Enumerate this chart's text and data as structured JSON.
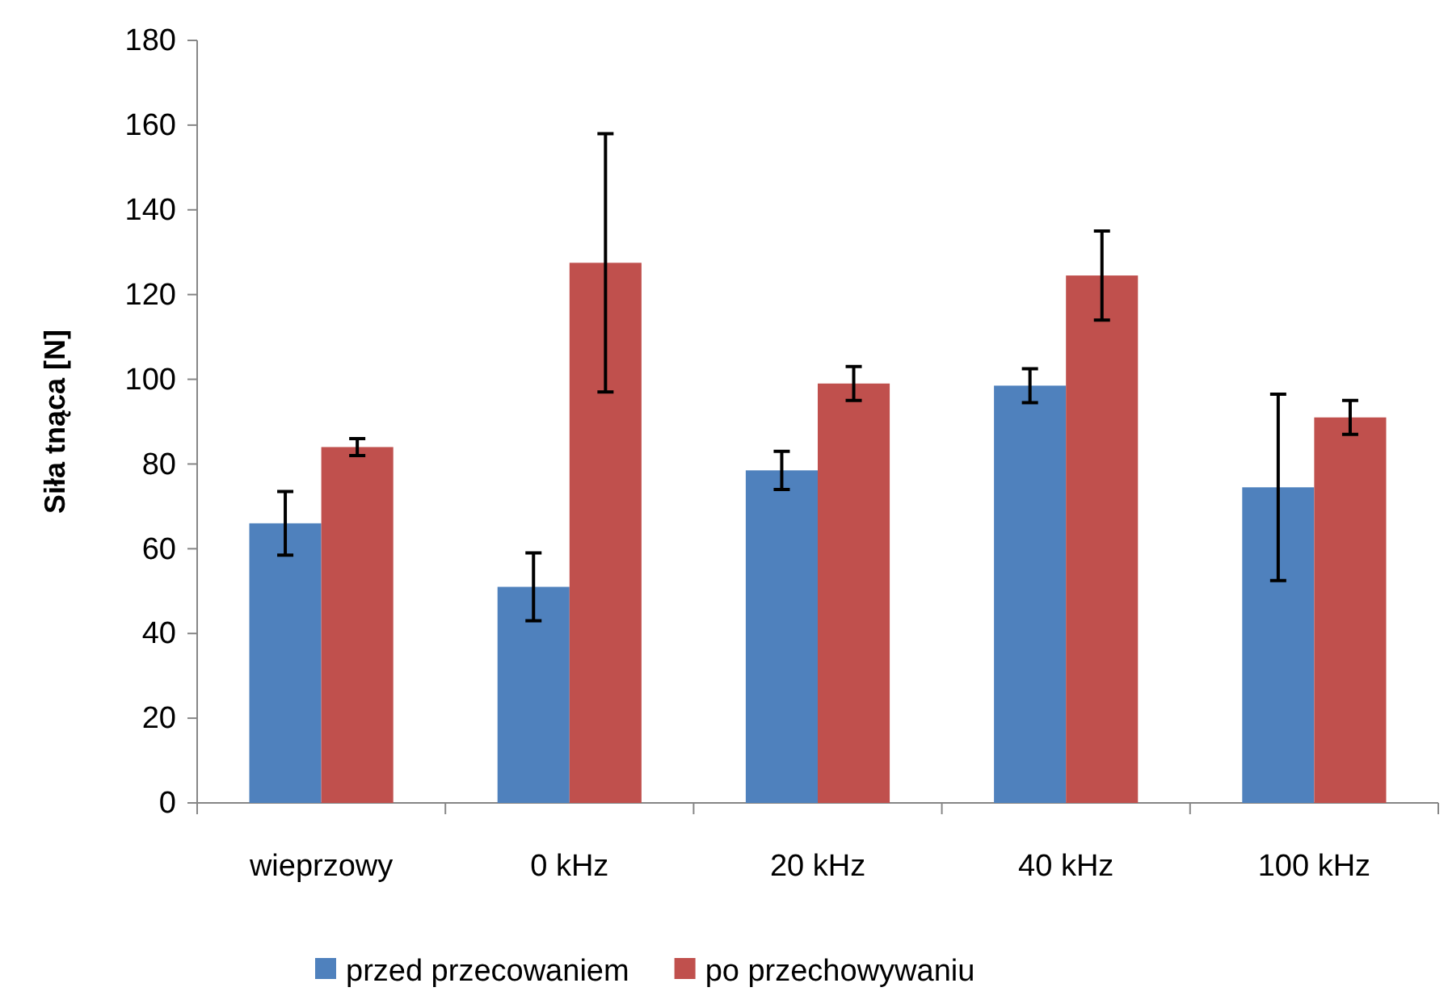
{
  "chart_data": {
    "type": "bar",
    "ylabel": "Siła tnąca [N]",
    "categories": [
      "wieprzowy",
      "0 kHz",
      "20 kHz",
      "40 kHz",
      "100 kHz"
    ],
    "series": [
      {
        "name": "przed przecowaniem",
        "color": "#4f81bd",
        "values": [
          66,
          51,
          78.5,
          98.5,
          74.5
        ],
        "errors": [
          7.5,
          8,
          4.5,
          4,
          22
        ]
      },
      {
        "name": "po przechowywaniu",
        "color": "#c0504d",
        "values": [
          84,
          127.5,
          99,
          124.5,
          91
        ],
        "errors": [
          2,
          30.5,
          4,
          10.5,
          4
        ]
      }
    ],
    "ylim": [
      0,
      180
    ],
    "yticks": [
      0,
      20,
      40,
      60,
      80,
      100,
      120,
      140,
      160,
      180
    ],
    "grid": false,
    "legend": "bottom"
  }
}
